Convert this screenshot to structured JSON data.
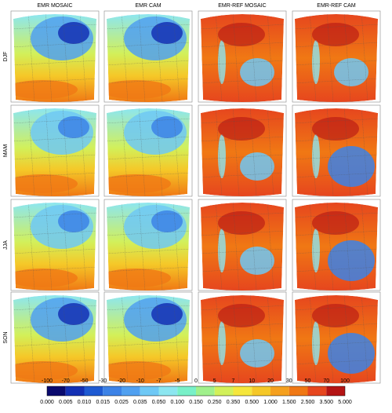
{
  "columns": [
    "EMR MOSAIC",
    "EMR CAM",
    "EMR-REF MOSAIC",
    "EMR-REF CAM"
  ],
  "rows": [
    "DJF",
    "MAM",
    "JJA",
    "SON"
  ],
  "colorbar": {
    "top_labels": [
      "-100",
      "-70",
      "-50",
      "-30",
      "-20",
      "-10",
      "-7",
      "-5",
      "0",
      "5",
      "7",
      "10",
      "20",
      "30",
      "50",
      "70",
      "100"
    ],
    "bottom_labels": [
      "0.000",
      "0.005",
      "0.010",
      "0.015",
      "0.025",
      "0.035",
      "0.050",
      "0.100",
      "0.150",
      "0.250",
      "0.350",
      "0.500",
      "1.000",
      "1.500",
      "2.500",
      "3.500",
      "5.000"
    ],
    "colors": [
      "#0a0a6e",
      "#1430b4",
      "#1e5ad2",
      "#3c82e6",
      "#50a0f0",
      "#6ec8f5",
      "#8ce6f0",
      "#78f0c8",
      "#a0f08c",
      "#d2f05a",
      "#f5e63c",
      "#f5c828",
      "#f5a01e",
      "#f07814",
      "#e6461e",
      "#b41414"
    ]
  }
}
